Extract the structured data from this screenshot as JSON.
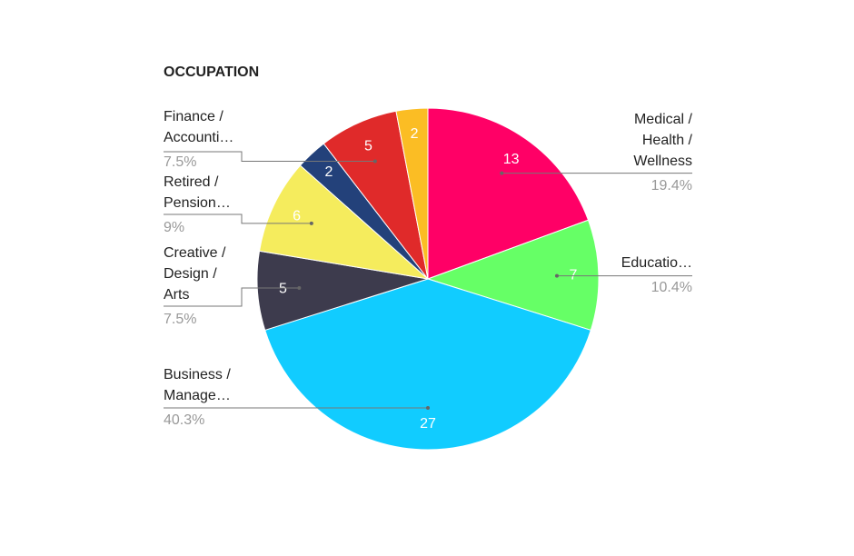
{
  "chart_data": {
    "type": "pie",
    "title": "OCCUPATION",
    "labels": [
      [
        "Medical /",
        "Health /",
        "Wellness"
      ],
      [
        "Educatio…"
      ],
      [
        "Business /",
        "Manage…"
      ],
      [
        "Creative /",
        "Design /",
        "Arts"
      ],
      [
        "Retired /",
        "Pension…"
      ],
      null,
      [
        "Finance /",
        "Accounti…"
      ],
      null
    ],
    "values": [
      13,
      7,
      27,
      5,
      6,
      2,
      5,
      2
    ],
    "percent_labels": [
      "19.4%",
      "10.4%",
      "40.3%",
      "7.5%",
      "9%",
      null,
      "7.5%",
      null
    ],
    "colors": [
      "#ff0066",
      "#66ff66",
      "#11ccff",
      "#3d3b4d",
      "#f5ec5d",
      "#23417a",
      "#e02a2a",
      "#fbbd24"
    ]
  }
}
